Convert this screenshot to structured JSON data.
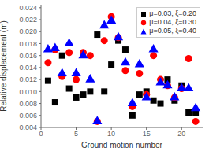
{
  "chart_data": {
    "type": "scatter",
    "x": [
      1,
      2,
      3,
      4,
      5,
      6,
      7,
      8,
      9,
      10,
      11,
      12,
      13,
      14,
      15,
      16,
      17,
      18,
      19,
      20,
      21,
      22
    ],
    "series": [
      {
        "name": "μ=0.03, ξ=0.20",
        "color": "black",
        "marker": "square",
        "values": [
          0.0118,
          0.0082,
          0.016,
          0.0105,
          0.009,
          0.0095,
          0.01,
          0.0195,
          0.01,
          0.0145,
          0.0185,
          0.017,
          0.006,
          0.0095,
          0.01,
          0.0085,
          0.008,
          0.012,
          0.0085,
          0.011,
          0.0065,
          0.0065
        ]
      },
      {
        "name": "μ=0.04, ξ=0.30",
        "color": "red",
        "marker": "circle",
        "values": [
          0.0148,
          0.017,
          0.0125,
          0.0165,
          0.012,
          0.0165,
          0.016,
          0.005,
          0.0185,
          0.0225,
          0.019,
          0.0135,
          0.0075,
          0.013,
          0.0095,
          0.016,
          0.012,
          0.011,
          0.009,
          0.0105,
          0.0155,
          0.005
        ]
      },
      {
        "name": "μ=0.05, ξ=0.40",
        "color": "blue",
        "marker": "triangle",
        "values": [
          0.017,
          0.0172,
          0.013,
          0.018,
          0.013,
          0.016,
          0.012,
          0.005,
          0.021,
          0.0218,
          0.019,
          0.0148,
          0.008,
          0.0145,
          0.009,
          0.017,
          0.0115,
          0.011,
          0.009,
          0.0105,
          0.0105,
          0.0072
        ]
      }
    ],
    "xlabel": "Ground motion number",
    "ylabel": "Relative displacement (m)",
    "xlim": [
      0,
      23
    ],
    "ylim": [
      0.004,
      0.0245
    ],
    "xticks": [
      0,
      5,
      10,
      15,
      20
    ],
    "yticks": [
      0.004,
      0.006,
      0.008,
      {
        "value": 0.01,
        "label": "0.010"
      },
      0.012,
      0.014,
      0.016,
      0.018,
      {
        "value": 0.02,
        "label": "0.020"
      },
      0.022,
      0.024
    ],
    "grid": false,
    "legend": "upper right"
  }
}
